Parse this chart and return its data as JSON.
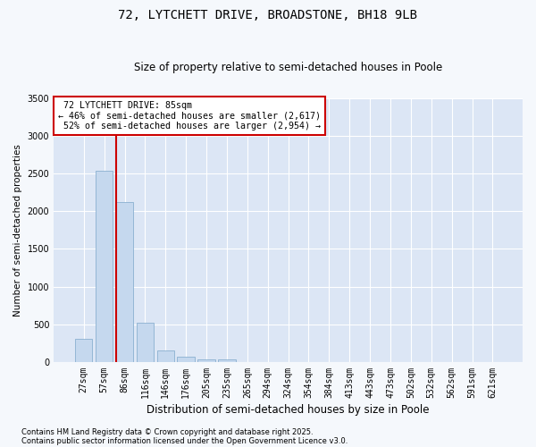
{
  "title": "72, LYTCHETT DRIVE, BROADSTONE, BH18 9LB",
  "subtitle": "Size of property relative to semi-detached houses in Poole",
  "xlabel": "Distribution of semi-detached houses by size in Poole",
  "ylabel": "Number of semi-detached properties",
  "bins": [
    "27sqm",
    "57sqm",
    "86sqm",
    "116sqm",
    "146sqm",
    "176sqm",
    "205sqm",
    "235sqm",
    "265sqm",
    "294sqm",
    "324sqm",
    "354sqm",
    "384sqm",
    "413sqm",
    "443sqm",
    "473sqm",
    "502sqm",
    "532sqm",
    "562sqm",
    "591sqm",
    "621sqm"
  ],
  "values": [
    310,
    2540,
    2120,
    520,
    150,
    75,
    40,
    30,
    5,
    2,
    0,
    0,
    0,
    0,
    0,
    0,
    0,
    0,
    0,
    0,
    0
  ],
  "bar_color": "#c5d8ee",
  "bar_edge_color": "#8ab0d0",
  "property_line_bin_index": 2,
  "property_label": "72 LYTCHETT DRIVE: 85sqm",
  "pct_smaller": 46,
  "pct_larger": 52,
  "count_smaller": "2,617",
  "count_larger": "2,954",
  "annotation_box_color": "#cc0000",
  "ylim": [
    0,
    3500
  ],
  "yticks": [
    0,
    500,
    1000,
    1500,
    2000,
    2500,
    3000,
    3500
  ],
  "fig_bg_color": "#f5f8fc",
  "plot_bg_color": "#dce6f5",
  "grid_color": "#ffffff",
  "footer1": "Contains HM Land Registry data © Crown copyright and database right 2025.",
  "footer2": "Contains public sector information licensed under the Open Government Licence v3.0."
}
